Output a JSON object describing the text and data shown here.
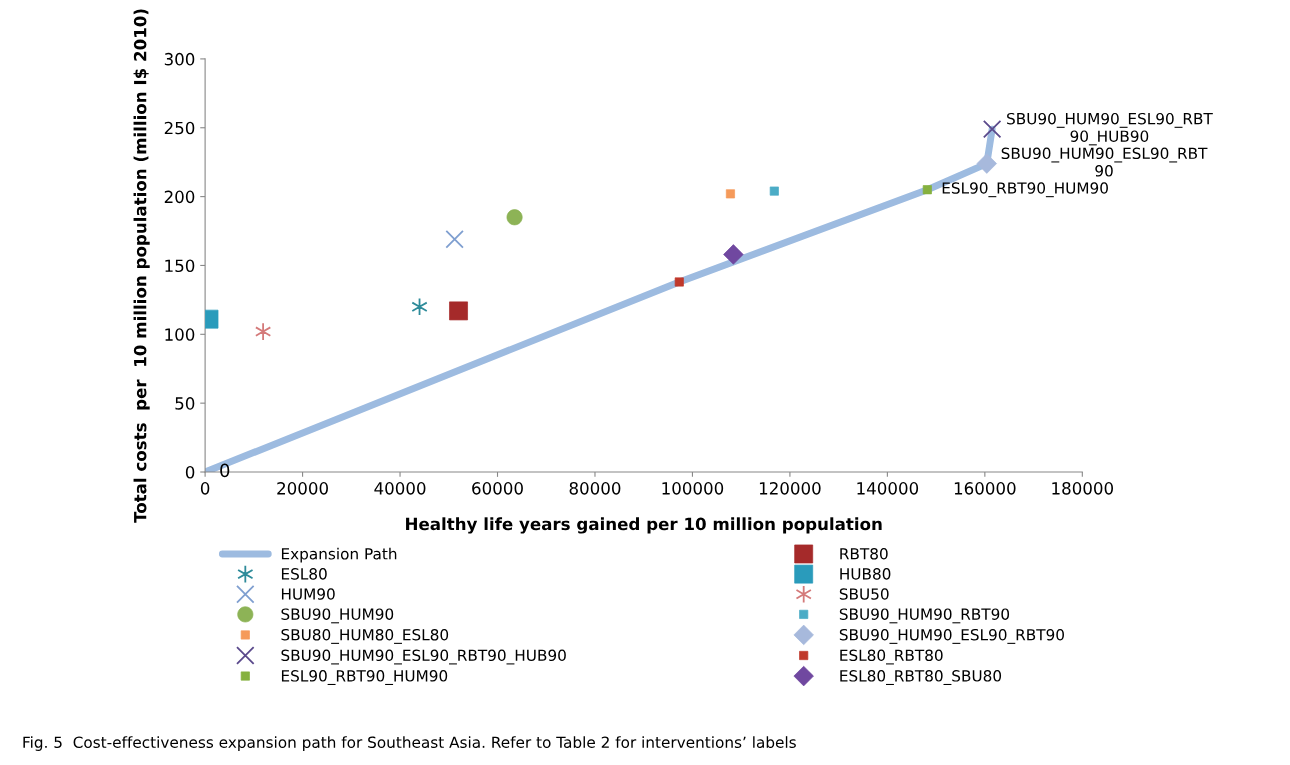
{
  "chart_data": {
    "type": "scatter",
    "xlabel": "Healthy life years gained per 10 million population",
    "ylabel": "Total costs  per  10 million population (million I$ 2010)",
    "xlim": [
      0,
      180000
    ],
    "xticks": [
      0,
      20000,
      40000,
      60000,
      80000,
      100000,
      120000,
      140000,
      160000,
      180000
    ],
    "ylim": [
      0,
      300
    ],
    "yticks": [
      0,
      50,
      100,
      150,
      200,
      250,
      300
    ],
    "grid": false,
    "legend": "bottom",
    "series": [
      {
        "name": "Expansion Path",
        "type": "line",
        "color": "#9dbbe0",
        "marker": "none",
        "line_style": "solid",
        "x": [
          0,
          97300,
          148200,
          160400,
          161500
        ],
        "values": [
          0,
          138,
          205,
          224,
          249
        ]
      },
      {
        "name": "ESL80",
        "color": "#2e8b9a",
        "marker": "cross",
        "x": [
          44000
        ],
        "values": [
          120
        ]
      },
      {
        "name": "HUM90",
        "color": "#7f9fd0",
        "marker": "cross",
        "x": [
          51200
        ],
        "values": [
          169
        ]
      },
      {
        "name": "SBU90_HUM90",
        "color": "#8db356",
        "marker": "circle",
        "x": [
          63500
        ],
        "values": [
          185
        ]
      },
      {
        "name": "SBU80_HUM80_ESL80",
        "color": "#f59a5a",
        "marker": "square",
        "x": [
          107800
        ],
        "values": [
          202
        ]
      },
      {
        "name": "SBU90_HUM90_ESL90_RBT90_HUB90",
        "color": "#5b4a8c",
        "marker": "cross",
        "x": [
          161500
        ],
        "values": [
          249
        ]
      },
      {
        "name": "ESL90_RBT90_HUM90",
        "color": "#86b13f",
        "marker": "square",
        "x": [
          148200
        ],
        "values": [
          205
        ]
      },
      {
        "name": "RBT80",
        "color": "#a52a2a",
        "marker": "square",
        "x": [
          52000
        ],
        "values": [
          117
        ]
      },
      {
        "name": "HUB80",
        "color": "#2a9bbb",
        "marker": "square",
        "x": [
          800
        ],
        "values": [
          111
        ]
      },
      {
        "name": "SBU50",
        "color": "#d47a7a",
        "marker": "cross",
        "x": [
          11900
        ],
        "values": [
          102
        ]
      },
      {
        "name": "SBU90_HUM90_RBT90",
        "color": "#4bacc6",
        "marker": "square",
        "x": [
          116800
        ],
        "values": [
          204
        ]
      },
      {
        "name": "SBU90_HUM90_ESL90_RBT90",
        "color": "#a7b9dc",
        "marker": "diamond",
        "x": [
          160400
        ],
        "values": [
          224
        ]
      },
      {
        "name": "ESL80_RBT80",
        "color": "#c0392b",
        "marker": "square",
        "x": [
          97300
        ],
        "values": [
          138
        ]
      },
      {
        "name": "ESL80_RBT80_SBU80",
        "color": "#7048a0",
        "marker": "diamond",
        "x": [
          108400
        ],
        "values": [
          158
        ]
      }
    ],
    "annotations": [
      {
        "text": "0",
        "x": 0,
        "y": 0
      },
      {
        "text": "SBU90_HUM90_ESL90_RBT\n90_HUB90",
        "x": 161500,
        "y": 249
      },
      {
        "text": "SBU90_HUM90_ESL90_RBT\n90",
        "x": 160400,
        "y": 224
      },
      {
        "text": "ESL90_RBT90_HUM90",
        "x": 148200,
        "y": 205
      },
      "Fig. 5  Cost-effectiveness expansion path for Southeast Asia. Refer to Table 2 for interventions’ labels"
    ]
  }
}
